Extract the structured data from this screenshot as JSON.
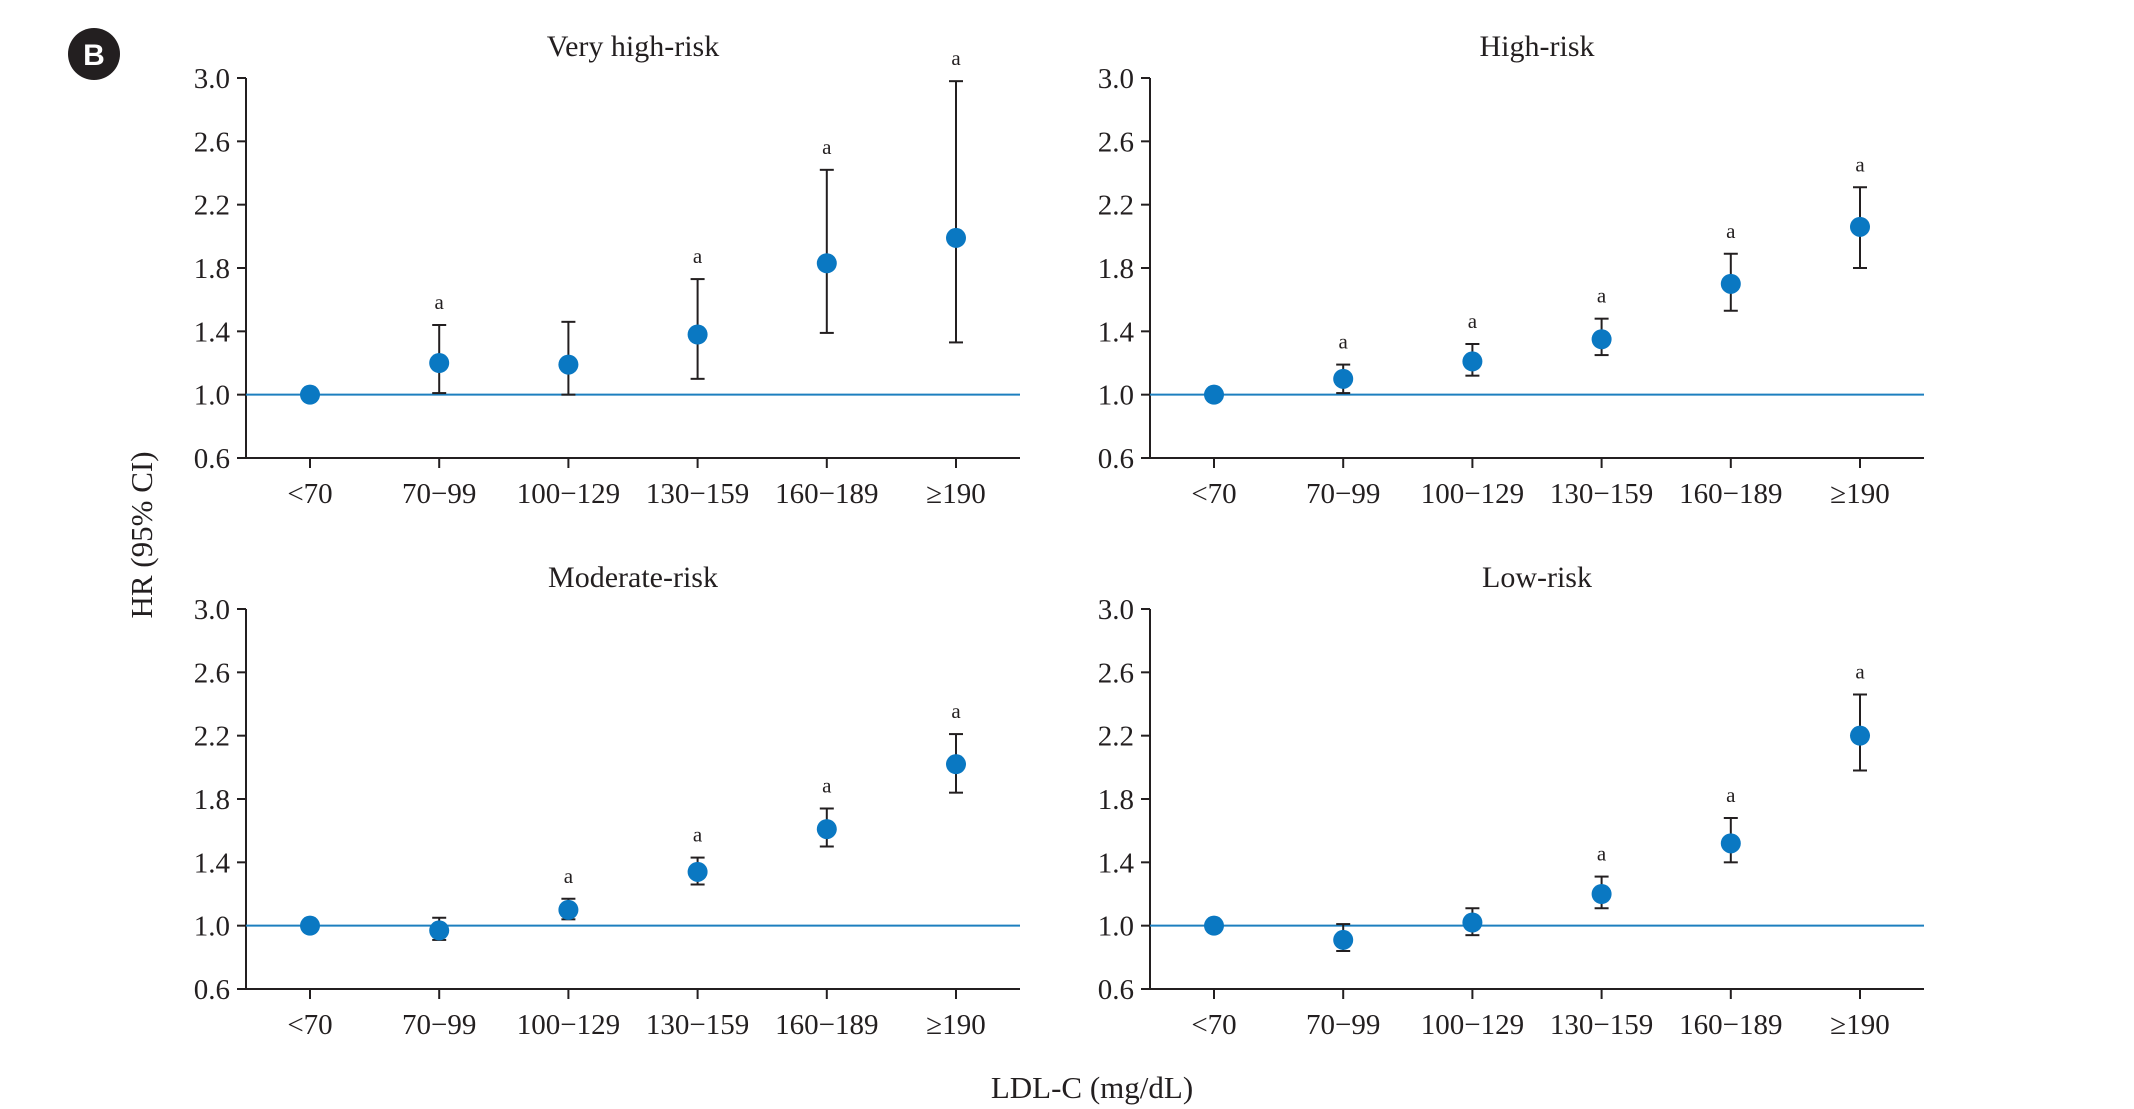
{
  "figure": {
    "panel_letter": "B",
    "ylabel": "HR (95% CI)",
    "xlabel": "LDL-C (mg/dL)"
  },
  "colors": {
    "marker": "#0a78c2",
    "reference_line": "#1d7fbf",
    "axis": "#231f20",
    "badge": "#231f20"
  },
  "chart_data": [
    {
      "type": "scatter",
      "title": "Very high-risk",
      "categories": [
        "<70",
        "70−99",
        "100−129",
        "130−159",
        "160−189",
        "≥190"
      ],
      "values": [
        1.0,
        1.2,
        1.19,
        1.38,
        1.83,
        1.99
      ],
      "ci_low": [
        null,
        1.01,
        1.0,
        1.1,
        1.39,
        1.33
      ],
      "ci_high": [
        null,
        1.44,
        1.46,
        1.73,
        2.42,
        2.98
      ],
      "significance": [
        "",
        "a",
        "",
        "a",
        "a",
        "a"
      ],
      "reference_line": 1.0,
      "yticks": [
        "0.6",
        "1.0",
        "1.4",
        "1.8",
        "2.2",
        "2.6",
        "3.0"
      ],
      "ylim": [
        0.6,
        3.0
      ]
    },
    {
      "type": "scatter",
      "title": "High-risk",
      "categories": [
        "<70",
        "70−99",
        "100−129",
        "130−159",
        "160−189",
        "≥190"
      ],
      "values": [
        1.0,
        1.1,
        1.21,
        1.35,
        1.7,
        2.06
      ],
      "ci_low": [
        null,
        1.01,
        1.12,
        1.25,
        1.53,
        1.8
      ],
      "ci_high": [
        null,
        1.19,
        1.32,
        1.48,
        1.89,
        2.31
      ],
      "significance": [
        "",
        "a",
        "a",
        "a",
        "a",
        "a"
      ],
      "reference_line": 1.0,
      "yticks": [
        "0.6",
        "1.0",
        "1.4",
        "1.8",
        "2.2",
        "2.6",
        "3.0"
      ],
      "ylim": [
        0.6,
        3.0
      ]
    },
    {
      "type": "scatter",
      "title": "Moderate-risk",
      "categories": [
        "<70",
        "70−99",
        "100−129",
        "130−159",
        "160−189",
        "≥190"
      ],
      "values": [
        1.0,
        0.97,
        1.1,
        1.34,
        1.61,
        2.02
      ],
      "ci_low": [
        null,
        0.91,
        1.04,
        1.26,
        1.5,
        1.84
      ],
      "ci_high": [
        null,
        1.05,
        1.17,
        1.43,
        1.74,
        2.21
      ],
      "significance": [
        "",
        "",
        "a",
        "a",
        "a",
        "a"
      ],
      "reference_line": 1.0,
      "yticks": [
        "0.6",
        "1.0",
        "1.4",
        "1.8",
        "2.2",
        "2.6",
        "3.0"
      ],
      "ylim": [
        0.6,
        3.0
      ]
    },
    {
      "type": "scatter",
      "title": "Low-risk",
      "categories": [
        "<70",
        "70−99",
        "100−129",
        "130−159",
        "160−189",
        "≥190"
      ],
      "values": [
        1.0,
        0.91,
        1.02,
        1.2,
        1.52,
        2.2
      ],
      "ci_low": [
        null,
        0.84,
        0.94,
        1.11,
        1.4,
        1.98
      ],
      "ci_high": [
        null,
        1.01,
        1.11,
        1.31,
        1.68,
        2.46
      ],
      "significance": [
        "",
        "",
        "",
        "a",
        "a",
        "a"
      ],
      "reference_line": 1.0,
      "yticks": [
        "0.6",
        "1.0",
        "1.4",
        "1.8",
        "2.2",
        "2.6",
        "3.0"
      ],
      "ylim": [
        0.6,
        3.0
      ]
    }
  ]
}
